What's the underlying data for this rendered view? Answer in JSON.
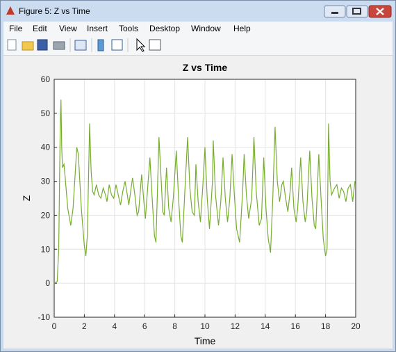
{
  "window": {
    "title": "Figure 5: Z vs Time"
  },
  "menu": [
    "File",
    "Edit",
    "View",
    "Insert",
    "Tools",
    "Desktop",
    "Window",
    "Help"
  ],
  "chart_data": {
    "type": "line",
    "title": "Z vs Time",
    "xlabel": "Time",
    "ylabel": "Z",
    "x": [
      0,
      0.2,
      0.3,
      0.4,
      0.45,
      0.5,
      0.55,
      0.65,
      0.75,
      0.9,
      1.1,
      1.25,
      1.5,
      1.6,
      1.8,
      2.0,
      2.1,
      2.2,
      2.35,
      2.45,
      2.55,
      2.65,
      2.8,
      2.95,
      3.1,
      3.25,
      3.4,
      3.5,
      3.65,
      3.8,
      3.95,
      4.1,
      4.25,
      4.4,
      4.55,
      4.7,
      4.85,
      4.95,
      5.1,
      5.2,
      5.35,
      5.5,
      5.6,
      5.8,
      5.95,
      6.05,
      6.2,
      6.35,
      6.5,
      6.65,
      6.75,
      6.95,
      7.1,
      7.2,
      7.3,
      7.45,
      7.6,
      7.75,
      7.9,
      8.1,
      8.25,
      8.4,
      8.5,
      8.7,
      8.85,
      9.0,
      9.15,
      9.3,
      9.4,
      9.55,
      9.7,
      9.85,
      10.0,
      10.15,
      10.3,
      10.5,
      10.55,
      10.7,
      10.9,
      11.05,
      11.2,
      11.35,
      11.5,
      11.65,
      11.8,
      11.95,
      12.1,
      12.3,
      12.5,
      12.6,
      12.75,
      12.9,
      13.1,
      13.25,
      13.4,
      13.6,
      13.75,
      13.9,
      14.05,
      14.2,
      14.35,
      14.5,
      14.65,
      14.8,
      14.95,
      15.1,
      15.2,
      15.35,
      15.5,
      15.65,
      15.75,
      15.9,
      16.05,
      16.15,
      16.35,
      16.5,
      16.65,
      16.75,
      16.95,
      17.1,
      17.25,
      17.35,
      17.55,
      17.7,
      17.85,
      18.0,
      18.1,
      18.2,
      18.3,
      18.4,
      18.6,
      18.75,
      18.9,
      19.05,
      19.2,
      19.35,
      19.5,
      19.65,
      19.8,
      19.95,
      20.0
    ],
    "series": [
      {
        "color": "#77ac30",
        "values": [
          0,
          0.5,
          10,
          46,
          54,
          40,
          34,
          35,
          30,
          22,
          17,
          22,
          40,
          38,
          22,
          11,
          8,
          14,
          47,
          33,
          27,
          26,
          29,
          26,
          25,
          28,
          26,
          24,
          29,
          26,
          25,
          29,
          26,
          23,
          27,
          30,
          26,
          23,
          28,
          31,
          26,
          20,
          21,
          32,
          24,
          19,
          28,
          37,
          25,
          14,
          12,
          43,
          30,
          21,
          20,
          34,
          22,
          18,
          25,
          39,
          25,
          14,
          12,
          30,
          43,
          28,
          21,
          20,
          35,
          24,
          18,
          28,
          40,
          25,
          16,
          30,
          42,
          26,
          17,
          24,
          37,
          25,
          18,
          25,
          38,
          26,
          16,
          12,
          27,
          38,
          26,
          19,
          25,
          43,
          27,
          17,
          19,
          37,
          22,
          13,
          9,
          25,
          46,
          30,
          24,
          29,
          30,
          25,
          21,
          27,
          34,
          22,
          18,
          22,
          37,
          24,
          18,
          21,
          39,
          25,
          17,
          16,
          38,
          25,
          13,
          8,
          10,
          47,
          30,
          26,
          28,
          29,
          25,
          28,
          27,
          24,
          28,
          29,
          24,
          30,
          30
        ]
      }
    ],
    "xlim": [
      0,
      20
    ],
    "ylim": [
      -10,
      60
    ],
    "xticks": [
      0,
      2,
      4,
      6,
      8,
      10,
      12,
      14,
      16,
      18,
      20
    ],
    "yticks": [
      -10,
      0,
      10,
      20,
      30,
      40,
      50,
      60
    ],
    "grid": true
  }
}
